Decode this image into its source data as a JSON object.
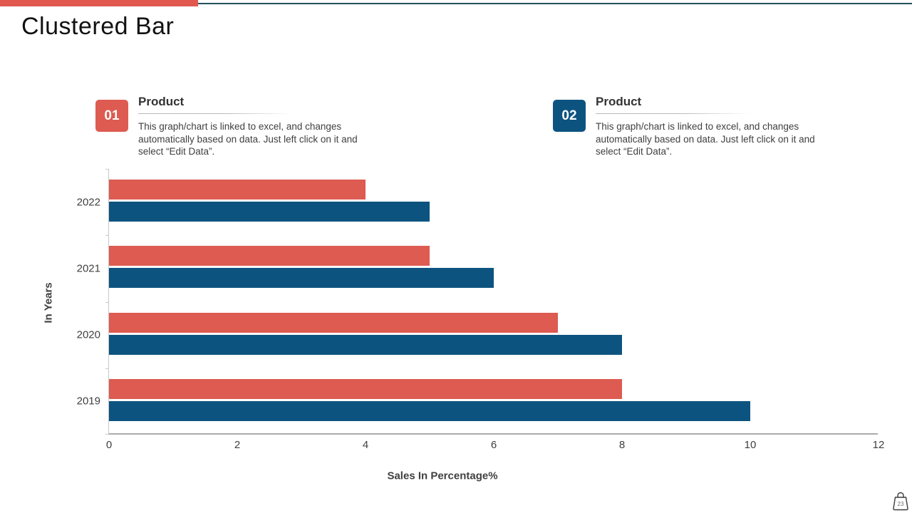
{
  "slide": {
    "title": "Clustered Bar",
    "page_number": "23"
  },
  "accent_colors": {
    "red": "#e0584e",
    "blue": "#0d5380",
    "teal_line": "#24525c"
  },
  "callouts": [
    {
      "number": "01",
      "heading": "Product",
      "body": "This graph/chart is linked to excel, and changes automatically based on data. Just left click on it and select “Edit Data”.",
      "color": "#dd5b51"
    },
    {
      "number": "02",
      "heading": "Product",
      "body": "This graph/chart is linked to excel, and changes automatically based on data. Just left click on it and select “Edit Data”.",
      "color": "#0d5380"
    }
  ],
  "chart_data": {
    "type": "bar",
    "orientation": "horizontal",
    "categories": [
      "2022",
      "2021",
      "2020",
      "2019"
    ],
    "series": [
      {
        "name": "Product 01",
        "color": "#dd5b51",
        "values": [
          4,
          5,
          7,
          8
        ]
      },
      {
        "name": "Product 02",
        "color": "#0d5380",
        "values": [
          5,
          6,
          8,
          10
        ]
      }
    ],
    "xlabel": "Sales In Percentage%",
    "ylabel": "In Years",
    "xlim": [
      0,
      12
    ],
    "xticks": [
      0,
      2,
      4,
      6,
      8,
      10,
      12
    ],
    "grid": false,
    "legend": "none"
  }
}
